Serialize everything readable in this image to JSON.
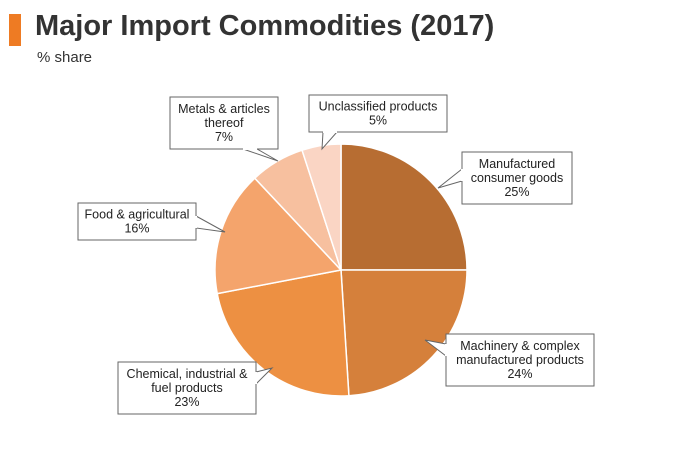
{
  "header": {
    "title": "Major Import Commodities (2017)",
    "subtitle": "% share"
  },
  "colors": {
    "accent": "#ee7b23",
    "slices": [
      "#b76d32",
      "#d5803b",
      "#ed9042",
      "#f4a46c",
      "#f7c09f",
      "#fad5c4"
    ]
  },
  "chart_data": {
    "type": "pie",
    "title": "Major Import Commodities (2017)",
    "subtitle": "% share",
    "unit": "%",
    "start": "12 o'clock, clockwise",
    "slices": [
      {
        "lines": [
          "Manufactured",
          "consumer goods",
          "25%"
        ],
        "value": 25
      },
      {
        "lines": [
          "Machinery & complex",
          "manufactured products",
          "24%"
        ],
        "value": 24
      },
      {
        "lines": [
          "Chemical, industrial &",
          "fuel products",
          "23%"
        ],
        "value": 23
      },
      {
        "lines": [
          "Food & agricultural",
          "16%"
        ],
        "value": 16
      },
      {
        "lines": [
          "Metals & articles",
          "thereof",
          "7%"
        ],
        "value": 7
      },
      {
        "lines": [
          "Unclassified products",
          "5%"
        ],
        "value": 5
      }
    ]
  }
}
